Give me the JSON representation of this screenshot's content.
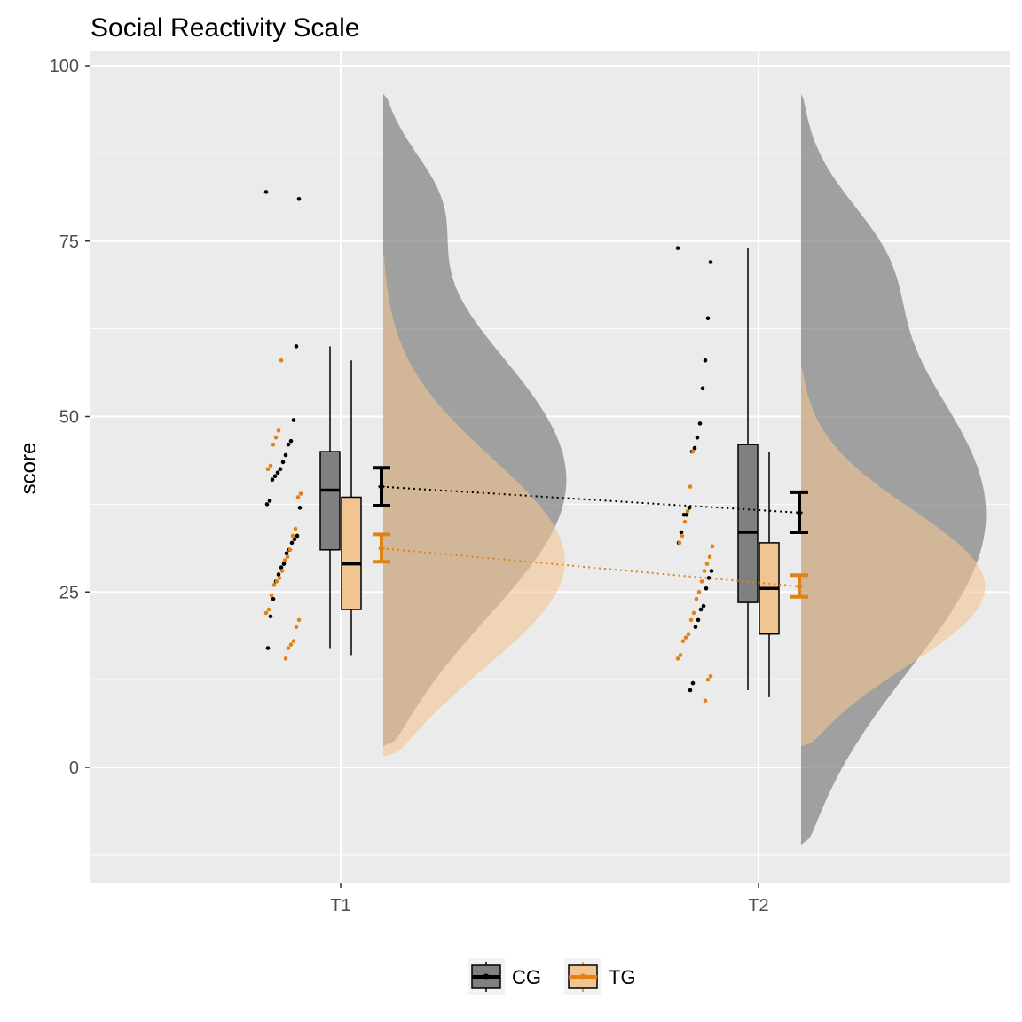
{
  "chart_data": {
    "type": "raincloud",
    "title": "Social Reactivity Scale",
    "xlabel": "",
    "ylabel": "score",
    "categories": [
      "T1",
      "T2"
    ],
    "ylim": [
      -13,
      100
    ],
    "yticks": [
      0,
      25,
      50,
      75,
      100
    ],
    "grid": true,
    "legend": {
      "position": "bottom",
      "title": ""
    },
    "series": [
      {
        "name": "CG",
        "color": "#000000",
        "fill": "#808080",
        "box": [
          {
            "category": "T1",
            "whisker_low": 17,
            "q1": 31,
            "median": 39.5,
            "q3": 45,
            "whisker_high": 60
          },
          {
            "category": "T2",
            "whisker_low": 11,
            "q1": 23.5,
            "median": 33.5,
            "q3": 46,
            "whisker_high": 74
          }
        ],
        "mean": [
          {
            "category": "T1",
            "mean": 40,
            "ci_low": 37.3,
            "ci_high": 42.7
          },
          {
            "category": "T2",
            "mean": 36.3,
            "ci_low": 33.5,
            "ci_high": 39.2
          }
        ],
        "points": [
          {
            "category": "T1",
            "values": [
              82,
              81,
              60,
              49.5,
              46.5,
              46,
              44.5,
              43.5,
              42.5,
              42,
              41.5,
              41,
              38,
              37.5,
              37,
              33,
              32.5,
              32,
              31,
              30.5,
              29,
              28.5,
              27.5,
              26.5,
              24,
              21.5,
              17
            ]
          },
          {
            "category": "T2",
            "values": [
              74,
              72,
              64,
              58,
              54,
              49,
              47,
              45.5,
              45,
              37,
              36,
              36,
              33.5,
              32,
              28,
              27,
              25.5,
              23,
              22.5,
              21,
              20,
              12,
              11
            ]
          }
        ],
        "density": [
          {
            "category": "T1",
            "min": 3,
            "max": 96,
            "peak_at": 39.5,
            "secondary_peak_at": 82
          },
          {
            "category": "T2",
            "min": -11,
            "max": 96,
            "peak_at": 35,
            "secondary_peak_at": 74
          }
        ]
      },
      {
        "name": "TG",
        "color": "#e08214",
        "fill": "#f1c591",
        "box": [
          {
            "category": "T1",
            "whisker_low": 16,
            "q1": 22.5,
            "median": 29,
            "q3": 38.5,
            "whisker_high": 58
          },
          {
            "category": "T2",
            "whisker_low": 10,
            "q1": 19,
            "median": 25.5,
            "q3": 32,
            "whisker_high": 45
          }
        ],
        "mean": [
          {
            "category": "T1",
            "mean": 31.2,
            "ci_low": 29.3,
            "ci_high": 33.2
          },
          {
            "category": "T2",
            "mean": 25.8,
            "ci_low": 24.3,
            "ci_high": 27.4
          }
        ],
        "points": [
          {
            "category": "T1",
            "values": [
              58,
              48,
              47,
              46,
              43,
              42.5,
              39,
              38.5,
              34,
              33,
              31,
              30,
              29.5,
              28,
              27,
              26.5,
              26,
              24.5,
              22.5,
              22,
              21,
              20,
              18,
              17.5,
              17,
              15.5
            ]
          },
          {
            "category": "T2",
            "values": [
              45,
              40,
              36.5,
              35,
              33,
              32,
              31.5,
              30,
              29,
              28,
              26.5,
              25,
              24,
              22,
              21,
              19,
              18.5,
              18,
              16,
              15.5,
              13,
              12.5,
              9.5
            ]
          }
        ],
        "density": [
          {
            "category": "T1",
            "min": 1.5,
            "max": 73,
            "peak_at": 28
          },
          {
            "category": "T2",
            "min": 3,
            "max": 57,
            "peak_at": 25
          }
        ]
      }
    ]
  }
}
